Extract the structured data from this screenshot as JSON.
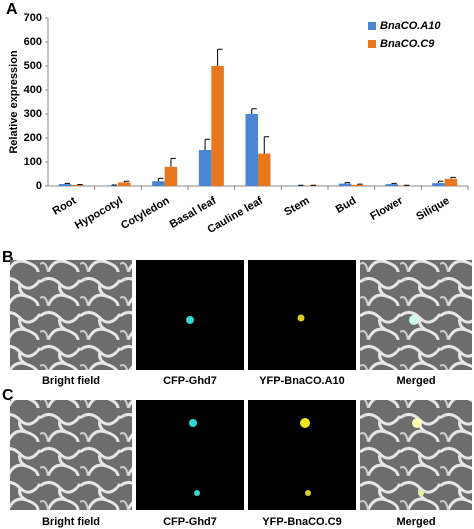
{
  "chart_data": {
    "type": "bar",
    "label": "A",
    "ylabel": "Relative expression",
    "categories": [
      "Root",
      "Hypocotyl",
      "Cotyledon",
      "Basal leaf",
      "Cauline leaf",
      "Stem",
      "Bud",
      "Flower",
      "Silique"
    ],
    "series": [
      {
        "name": "BnaCO.A10",
        "color": "#4a86d4",
        "values": [
          8,
          2,
          20,
          150,
          300,
          2,
          10,
          8,
          12
        ],
        "errors": [
          3,
          2,
          12,
          45,
          22,
          1,
          4,
          3,
          8
        ]
      },
      {
        "name": "BnaCO.C9",
        "color": "#e8771e",
        "values": [
          4,
          15,
          80,
          500,
          135,
          2,
          5,
          2,
          30
        ],
        "errors": [
          2,
          5,
          35,
          70,
          70,
          1,
          3,
          1,
          6
        ]
      }
    ],
    "ylim": [
      0,
      700
    ],
    "yticks": [
      0,
      100,
      200,
      300,
      400,
      500,
      600,
      700
    ],
    "legend": "top-right"
  },
  "panels": [
    {
      "label": "B",
      "captions": [
        "Bright field",
        "CFP-Ghd7",
        "YFP-BnaCO.A10",
        "Merged"
      ]
    },
    {
      "label": "C",
      "captions": [
        "Bright field",
        "CFP-Ghd7",
        "YFP-BnaCO.C9",
        "Merged"
      ]
    }
  ]
}
